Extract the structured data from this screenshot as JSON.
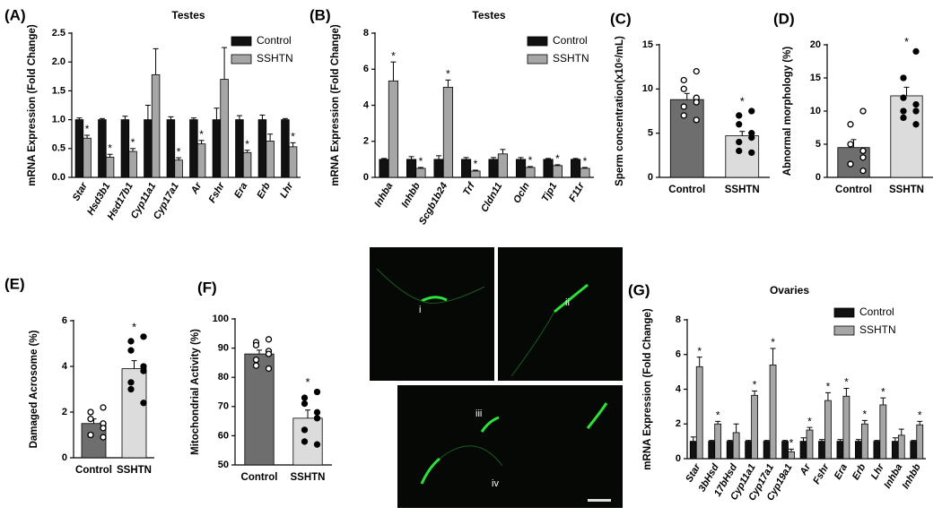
{
  "chart_data": [
    {
      "type": "grouped_bar",
      "panel": "(A)",
      "title": "Testes",
      "ylabel": "mRNA Expression (Fold Change)",
      "categories": [
        "Star",
        "Hsd3b1",
        "Hsd17b1",
        "Cyp11a1",
        "Cyp17a1",
        "Ar",
        "Fshr",
        "Era",
        "Erb",
        "Lhr"
      ],
      "series": [
        {
          "name": "Control",
          "color": "#111111",
          "values": [
            1,
            1,
            1,
            1,
            1,
            1,
            1,
            1,
            1,
            1
          ],
          "errors": [
            0.03,
            0.02,
            0.06,
            0.25,
            0.05,
            0.03,
            0.2,
            0.07,
            0.08,
            0.02
          ]
        },
        {
          "name": "SSHTN",
          "color": "#a6a6a6",
          "values": [
            0.68,
            0.35,
            0.45,
            1.78,
            0.3,
            0.58,
            1.7,
            0.43,
            0.63,
            0.53
          ],
          "errors": [
            0.05,
            0.05,
            0.05,
            0.45,
            0.04,
            0.06,
            0.55,
            0.04,
            0.12,
            0.07
          ],
          "significance": [
            "*",
            "*",
            "*",
            null,
            "*",
            "*",
            null,
            "*",
            null,
            "*"
          ]
        }
      ],
      "ylim": [
        0,
        2.5
      ],
      "yticks": [
        {
          "value": 0,
          "label": "0.0"
        },
        {
          "value": 0.5,
          "label": "0.5"
        },
        {
          "value": 1,
          "label": "1.0"
        },
        {
          "value": 1.5,
          "label": "1.5"
        },
        {
          "value": 2,
          "label": "2.0"
        },
        {
          "value": 2.5,
          "label": "2.5"
        }
      ],
      "legend": "upper right"
    },
    {
      "type": "grouped_bar",
      "panel": "(B)",
      "title": "Testes",
      "ylabel": "mRNA Expression (Fold Change)",
      "categories": [
        "Inhba",
        "Inhbb",
        "Scgb1b24",
        "Trf",
        "Cldn11",
        "Ocln",
        "Tjp1",
        "F11r"
      ],
      "series": [
        {
          "name": "Control",
          "color": "#111111",
          "values": [
            1,
            1,
            1,
            1,
            1,
            1,
            1,
            1
          ],
          "errors": [
            0.05,
            0.15,
            0.2,
            0.1,
            0.1,
            0.1,
            0.05,
            0.05
          ]
        },
        {
          "name": "SSHTN",
          "color": "#a6a6a6",
          "values": [
            5.35,
            0.5,
            5.0,
            0.35,
            1.3,
            0.55,
            0.65,
            0.5
          ],
          "errors": [
            1.05,
            0.05,
            0.4,
            0.05,
            0.25,
            0.05,
            0.05,
            0.05
          ],
          "significance": [
            "*",
            "*",
            "*",
            "*",
            null,
            "*",
            "*",
            "*"
          ]
        }
      ],
      "ylim": [
        0,
        8
      ],
      "yticks": [
        0,
        2,
        4,
        6,
        8
      ],
      "legend": "upper right"
    },
    {
      "type": "dot_bar",
      "panel": "(C)",
      "ylabel": "Sperm concentration(x10⁶/mL)",
      "categories": [
        "Control",
        "SSHTN"
      ],
      "values": [
        8.8,
        4.7
      ],
      "errors": [
        0.7,
        0.5
      ],
      "colors": [
        "#6e6e6e",
        "#dcdcdc"
      ],
      "points": [
        [
          12,
          11,
          10,
          9,
          8.5,
          8,
          7,
          6.5
        ],
        [
          7.5,
          7,
          6,
          5,
          4.5,
          4,
          3,
          2.8
        ]
      ],
      "significance": [
        null,
        "*"
      ],
      "ylim": [
        0,
        15
      ],
      "yticks": [
        0,
        5,
        10,
        15
      ]
    },
    {
      "type": "dot_bar",
      "panel": "(D)",
      "ylabel": "Abnormal morphology (%)",
      "categories": [
        "Control",
        "SSHTN"
      ],
      "values": [
        4.5,
        12.3
      ],
      "errors": [
        1.2,
        1.3
      ],
      "colors": [
        "#6e6e6e",
        "#dcdcdc"
      ],
      "points": [
        [
          10,
          8,
          5,
          4,
          3,
          2,
          2,
          1
        ],
        [
          19,
          15,
          12,
          11,
          10,
          10,
          9,
          8
        ]
      ],
      "significance": [
        null,
        "*"
      ],
      "ylim": [
        0,
        20
      ],
      "yticks": [
        0,
        5,
        10,
        15,
        20
      ]
    },
    {
      "type": "dot_bar",
      "panel": "(E)",
      "ylabel": "Damaged Acrosome (%)",
      "categories": [
        "Control",
        "SSHTN"
      ],
      "values": [
        1.5,
        3.9
      ],
      "errors": [
        0.2,
        0.35
      ],
      "colors": [
        "#6e6e6e",
        "#dcdcdc"
      ],
      "points": [
        [
          2.2,
          2.0,
          1.7,
          1.5,
          1.3,
          1.0,
          1.0,
          0.9
        ],
        [
          5.3,
          5.1,
          4.7,
          4.0,
          3.8,
          3.3,
          3.0,
          2.4
        ]
      ],
      "significance": [
        null,
        "*"
      ],
      "ylim": [
        0,
        6
      ],
      "yticks": [
        0,
        2,
        4,
        6
      ]
    },
    {
      "type": "dot_bar",
      "panel": "(F)",
      "ylabel": "Mitochondrial Activity (%)",
      "categories": [
        "Control",
        "SSHTN"
      ],
      "values": [
        88,
        66
      ],
      "errors": [
        1.3,
        2.8
      ],
      "colors": [
        "#6e6e6e",
        "#dcdcdc"
      ],
      "points": [
        [
          93,
          92,
          91,
          89,
          88,
          86,
          84,
          83
        ],
        [
          75,
          73,
          71,
          68,
          66,
          62,
          58,
          57
        ]
      ],
      "significance": [
        null,
        "*"
      ],
      "ylim": [
        50,
        100
      ],
      "yticks": [
        50,
        60,
        70,
        80,
        90,
        100
      ]
    },
    {
      "type": "grouped_bar",
      "panel": "(G)",
      "title": "Ovaries",
      "ylabel": "mRNA Expression (Fold Change)",
      "categories": [
        "Star",
        "3bHsd",
        "17bHsd",
        "Cyp11a1",
        "Cyp17a1",
        "Cyp19a1",
        "Ar",
        "Fshr",
        "Era",
        "Erb",
        "Lhr",
        "Inhba",
        "Inhbb"
      ],
      "series": [
        {
          "name": "Control",
          "color": "#111111",
          "values": [
            1,
            1,
            1,
            1,
            1,
            1,
            1,
            1,
            1,
            1,
            1,
            1,
            1
          ],
          "errors": [
            0.25,
            0.05,
            0.05,
            0.05,
            0.05,
            0.05,
            0.2,
            0.1,
            0.1,
            0.1,
            0.05,
            0.2,
            0.05
          ]
        },
        {
          "name": "SSHTN",
          "color": "#a6a6a6",
          "values": [
            5.3,
            2.0,
            1.5,
            3.65,
            5.4,
            0.4,
            1.65,
            3.35,
            3.6,
            2.0,
            3.1,
            1.35,
            1.95
          ],
          "errors": [
            0.55,
            0.15,
            0.5,
            0.25,
            0.95,
            0.15,
            0.15,
            0.45,
            0.45,
            0.2,
            0.4,
            0.35,
            0.2
          ],
          "significance": [
            "*",
            "*",
            null,
            "*",
            "*",
            "*",
            "*",
            "*",
            "*",
            "*",
            "*",
            null,
            "*"
          ]
        }
      ],
      "ylim": [
        0,
        8
      ],
      "yticks": [
        0,
        2,
        4,
        6,
        8
      ],
      "legend": "upper right"
    }
  ],
  "micrographs": {
    "labels": [
      "i",
      "ii",
      "iii",
      "iv"
    ]
  }
}
